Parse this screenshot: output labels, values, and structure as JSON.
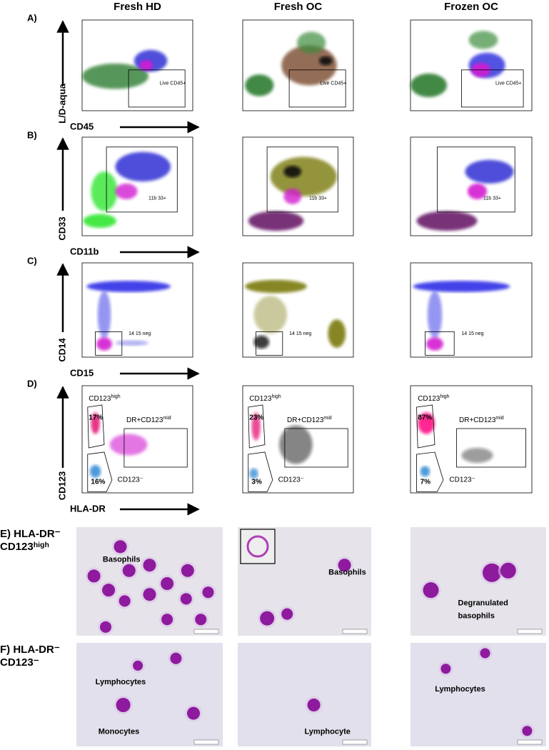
{
  "columns": [
    "Fresh HD",
    "Fresh OC",
    "Frozen OC"
  ],
  "flow_rows": [
    {
      "label": "A)",
      "y_axis": "L/D-aqua",
      "x_axis": "CD45",
      "gates": [
        [
          {
            "text": "Live CD45+"
          }
        ],
        [
          {
            "text": "Live CD45+"
          }
        ],
        [
          {
            "text": "Live CD45+"
          }
        ]
      ]
    },
    {
      "label": "B)",
      "y_axis": "CD33",
      "x_axis": "CD11b",
      "gates": [
        [
          {
            "text": "11b 33+"
          }
        ],
        [
          {
            "text": "11b 33+"
          }
        ],
        [
          {
            "text": "11b 33+"
          }
        ]
      ]
    },
    {
      "label": "C)",
      "y_axis": "CD14",
      "x_axis": "CD15",
      "gates": [
        [
          {
            "text": "14 15 neg"
          }
        ],
        [
          {
            "text": "14 15 neg"
          }
        ],
        [
          {
            "text": "14 15 neg"
          }
        ]
      ]
    },
    {
      "label": "D)",
      "y_axis": "CD123",
      "x_axis": "HLA-DR",
      "gates": [
        [
          {
            "base": "CD123",
            "sup": "high"
          },
          {
            "text": "17%"
          },
          {
            "base": "DR+CD123",
            "sup": "mid"
          },
          {
            "text": "CD123⁻"
          },
          {
            "text": "16%"
          }
        ],
        [
          {
            "base": "CD123",
            "sup": "high"
          },
          {
            "text": "23%"
          },
          {
            "base": "DR+CD123",
            "sup": "mid"
          },
          {
            "text": "CD123⁻"
          },
          {
            "text": "3%"
          }
        ],
        [
          {
            "base": "CD123",
            "sup": "high"
          },
          {
            "text": "87%"
          },
          {
            "base": "DR+CD123",
            "sup": "mid"
          },
          {
            "text": "CD123⁻"
          },
          {
            "text": "7%"
          }
        ]
      ]
    }
  ],
  "image_rows": [
    {
      "label": [
        {
          "text": "E) HLA-DR⁻"
        },
        {
          "base": "CD123",
          "sup": "high"
        }
      ],
      "captions": [
        [
          "Basophils"
        ],
        [
          "Basophils"
        ],
        [
          "Degranulated",
          "basophils"
        ]
      ]
    },
    {
      "label": [
        {
          "text": "F) HLA-DR⁻"
        },
        {
          "text": "CD123⁻"
        }
      ],
      "captions": [
        [
          "Lymphocytes",
          "Monocytes"
        ],
        [
          "Lymphocyte"
        ],
        [
          "Lymphocytes"
        ]
      ]
    }
  ]
}
